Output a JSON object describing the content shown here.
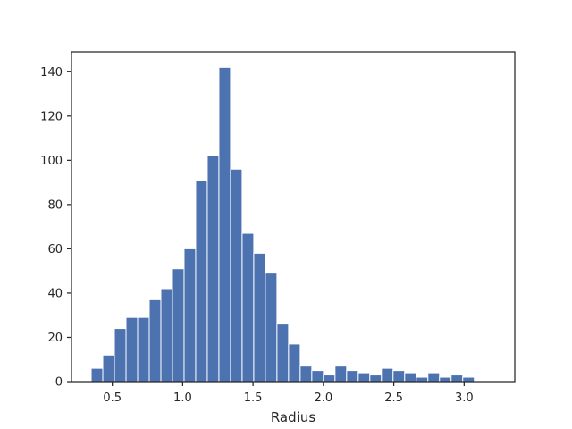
{
  "chart_data": {
    "type": "histogram",
    "title": "",
    "xlabel": "Radius",
    "ylabel": "",
    "bar_color": "#4c72b0",
    "bar_edge_color": "#ffffff",
    "axis_color": "#262626",
    "grid": false,
    "xlim": [
      0.21,
      3.36
    ],
    "ylim": [
      0,
      149
    ],
    "bin_start": 0.35,
    "bin_width": 0.0825,
    "counts": [
      6,
      12,
      24,
      29,
      29,
      37,
      42,
      51,
      60,
      91,
      102,
      142,
      96,
      67,
      58,
      49,
      26,
      17,
      7,
      5,
      3,
      7,
      5,
      4,
      3,
      6,
      5,
      4,
      2,
      4,
      2,
      3,
      2
    ],
    "xticks": [
      0.5,
      1.0,
      1.5,
      2.0,
      2.5,
      3.0
    ],
    "xtick_labels": [
      "0.5",
      "1.0",
      "1.5",
      "2.0",
      "2.5",
      "3.0"
    ],
    "yticks": [
      0,
      20,
      40,
      60,
      80,
      100,
      120,
      140
    ],
    "ytick_labels": [
      "0",
      "20",
      "40",
      "60",
      "80",
      "100",
      "120",
      "140"
    ]
  }
}
